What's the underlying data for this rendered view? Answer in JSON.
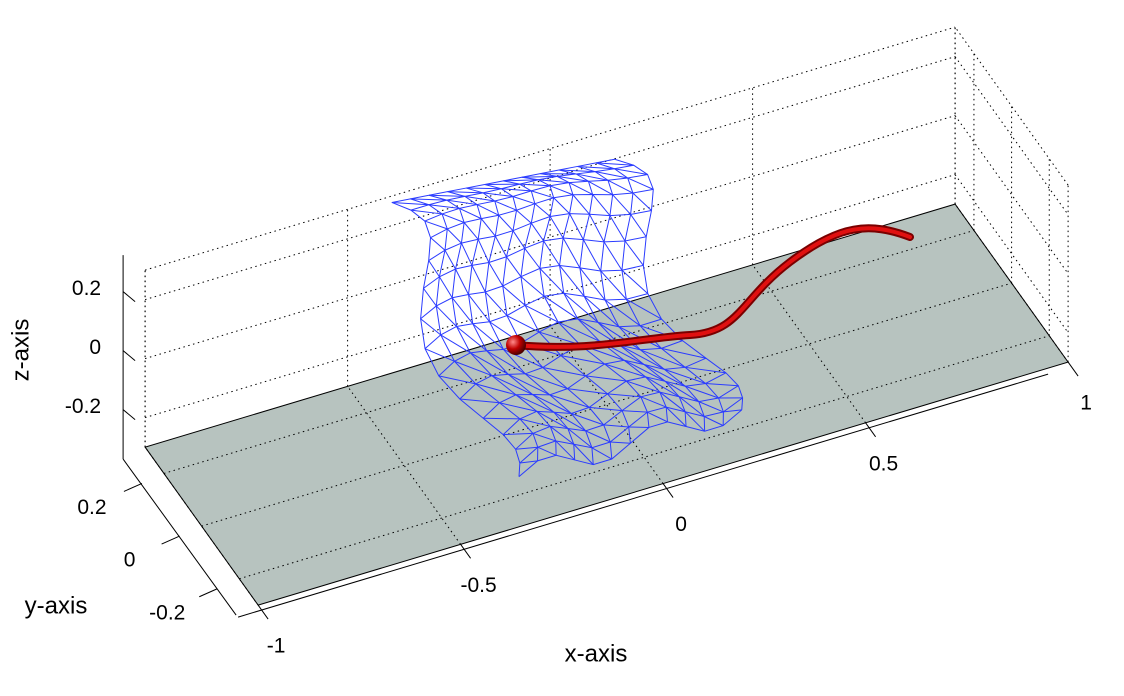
{
  "chart_data": {
    "type": "surface3d",
    "xlabel": "x-axis",
    "ylabel": "y-axis",
    "zlabel": "z-axis",
    "xlim": [
      -1,
      1
    ],
    "ylim": [
      -0.3,
      0.3
    ],
    "zlim": [
      -0.3,
      0.3
    ],
    "xticks": [
      -1,
      -0.5,
      0,
      0.5,
      1
    ],
    "yticks": [
      -0.2,
      0,
      0.2
    ],
    "zticks": [
      -0.2,
      0,
      0.2
    ],
    "grid": true
  }
}
